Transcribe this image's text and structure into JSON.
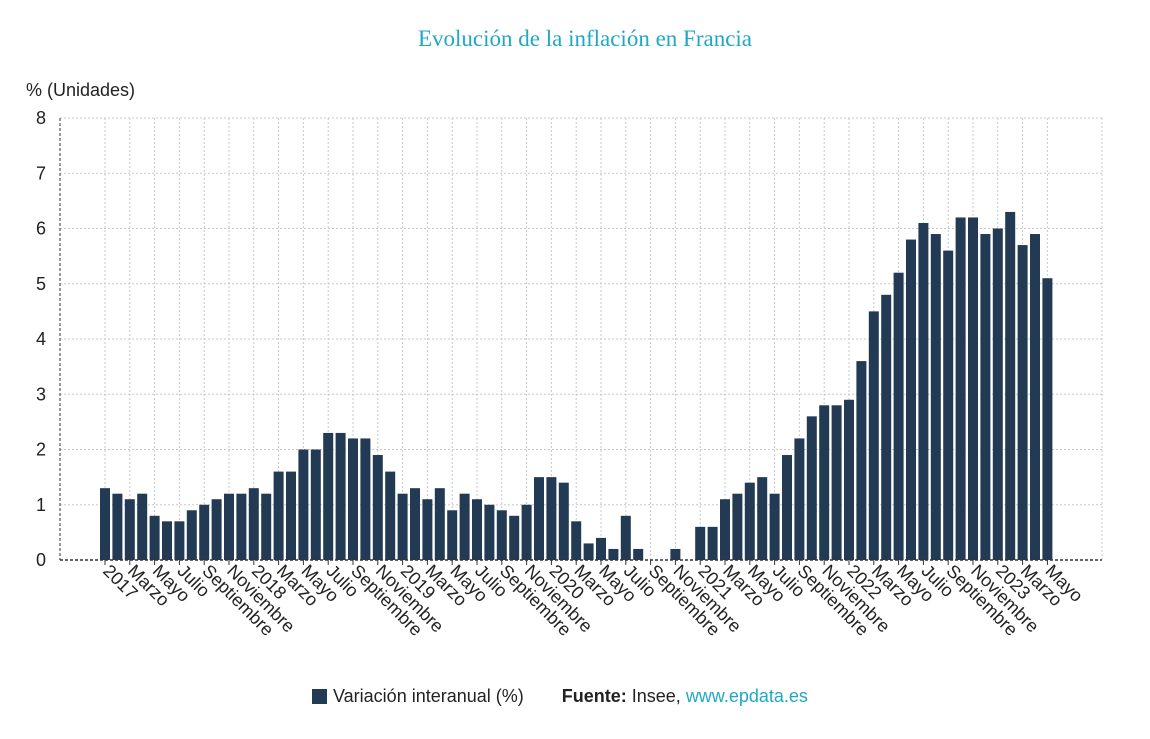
{
  "colors": {
    "bar": "#233a54",
    "title": "#1fa8c4",
    "grid": "#c8c8c8",
    "axis": "#333333"
  },
  "legend": {
    "series_label": "Variación interanual (%)",
    "source_prefix": "Fuente:",
    "source_name": " Insee, ",
    "source_link": "www.epdata.es"
  },
  "chart_data": {
    "type": "bar",
    "title": "Evolución de la inflación en Francia",
    "ylabel": "% (Unidades)",
    "xlabel": "",
    "ylim": [
      0,
      8
    ],
    "yticks": [
      0,
      1,
      2,
      3,
      4,
      5,
      6,
      7,
      8
    ],
    "grid": true,
    "legend_position": "bottom",
    "x_tick_labels": [
      "2017",
      "Marzo",
      "Mayo",
      "Julio",
      "Septiembre",
      "Noviembre",
      "2018",
      "Marzo",
      "Mayo",
      "Julio",
      "Septiembre",
      "Noviembre",
      "2019",
      "Marzo",
      "Mayo",
      "Julio",
      "Septiembre",
      "Noviembre",
      "2020",
      "Marzo",
      "Mayo",
      "Julio",
      "Septiembre",
      "Noviembre",
      "2021",
      "Marzo",
      "Mayo",
      "Julio",
      "Septiembre",
      "Noviembre",
      "2022",
      "Marzo",
      "Mayo",
      "Julio",
      "Septiembre",
      "Noviembre",
      "2023",
      "Marzo",
      "Mayo"
    ],
    "series": [
      {
        "name": "Variación interanual (%)",
        "values": [
          1.3,
          1.2,
          1.1,
          1.2,
          0.8,
          0.7,
          0.7,
          0.9,
          1.0,
          1.1,
          1.2,
          1.2,
          1.3,
          1.2,
          1.6,
          1.6,
          2.0,
          2.0,
          2.3,
          2.3,
          2.2,
          2.2,
          1.9,
          1.6,
          1.2,
          1.3,
          1.1,
          1.3,
          0.9,
          1.2,
          1.1,
          1.0,
          0.9,
          0.8,
          1.0,
          1.5,
          1.5,
          1.4,
          0.7,
          0.3,
          0.4,
          0.2,
          0.8,
          0.2,
          0.0,
          0.0,
          0.2,
          0.0,
          0.6,
          0.6,
          1.1,
          1.2,
          1.4,
          1.5,
          1.2,
          1.9,
          2.2,
          2.6,
          2.8,
          2.8,
          2.9,
          3.6,
          4.5,
          4.8,
          5.2,
          5.8,
          6.1,
          5.9,
          5.6,
          6.2,
          6.2,
          5.9,
          6.0,
          6.3,
          5.7,
          5.9,
          5.1
        ]
      }
    ]
  }
}
